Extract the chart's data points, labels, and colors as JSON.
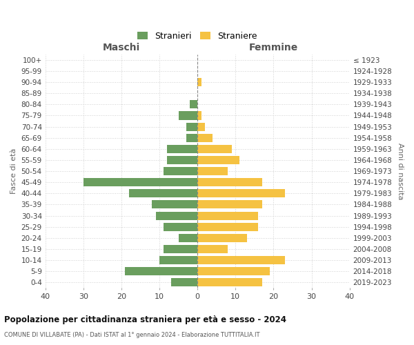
{
  "age_groups": [
    "0-4",
    "5-9",
    "10-14",
    "15-19",
    "20-24",
    "25-29",
    "30-34",
    "35-39",
    "40-44",
    "45-49",
    "50-54",
    "55-59",
    "60-64",
    "65-69",
    "70-74",
    "75-79",
    "80-84",
    "85-89",
    "90-94",
    "95-99",
    "100+"
  ],
  "birth_years": [
    "2019-2023",
    "2014-2018",
    "2009-2013",
    "2004-2008",
    "1999-2003",
    "1994-1998",
    "1989-1993",
    "1984-1988",
    "1979-1983",
    "1974-1978",
    "1969-1973",
    "1964-1968",
    "1959-1963",
    "1954-1958",
    "1949-1953",
    "1944-1948",
    "1939-1943",
    "1934-1938",
    "1929-1933",
    "1924-1928",
    "≤ 1923"
  ],
  "males": [
    7,
    19,
    10,
    9,
    5,
    9,
    11,
    12,
    18,
    30,
    9,
    8,
    8,
    3,
    3,
    5,
    2,
    0,
    0,
    0,
    0
  ],
  "females": [
    17,
    19,
    23,
    8,
    13,
    16,
    16,
    17,
    23,
    17,
    8,
    11,
    9,
    4,
    2,
    1,
    0,
    0,
    1,
    0,
    0
  ],
  "male_color": "#6a9e5e",
  "female_color": "#f5c242",
  "title": "Popolazione per cittadinanza straniera per età e sesso - 2024",
  "subtitle": "COMUNE DI VILLABATE (PA) - Dati ISTAT al 1° gennaio 2024 - Elaborazione TUTTITALIA.IT",
  "xlabel_left": "Maschi",
  "xlabel_right": "Femmine",
  "ylabel_left": "Fasce di età",
  "ylabel_right": "Anni di nascita",
  "xlim": 40,
  "legend_label_male": "Stranieri",
  "legend_label_female": "Straniere",
  "background_color": "#ffffff",
  "grid_color": "#d0d0d0",
  "bar_height": 0.75
}
